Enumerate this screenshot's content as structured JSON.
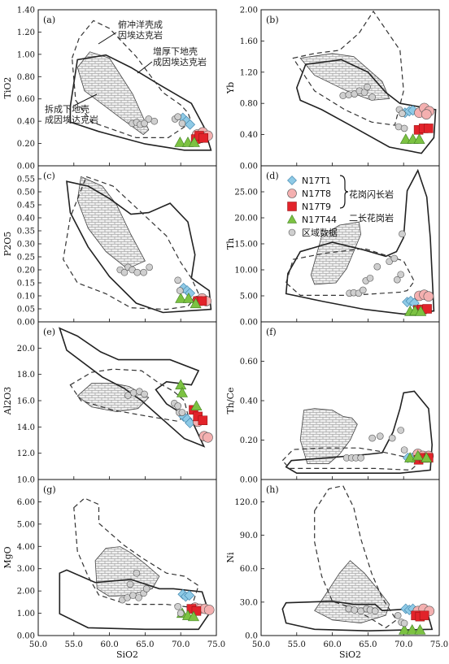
{
  "colors": {
    "N17T1": "#8ecae6",
    "N17T8": "#f4b0b0",
    "N17T9": "#e2232a",
    "N17T44": "#7cc242",
    "regional": "#cfcfcf",
    "hatch_fill": "#f0f0f0"
  },
  "legend": {
    "items": [
      {
        "key": "N17T1",
        "label": "N17T1",
        "marker": "diamond"
      },
      {
        "key": "N17T8",
        "label": "N17T8",
        "marker": "circle"
      },
      {
        "key": "N17T9",
        "label": "N17T9",
        "marker": "square"
      },
      {
        "key": "N17T44",
        "label": "N17T44",
        "marker": "triangle"
      },
      {
        "key": "regional",
        "label": "区域数据",
        "marker": "circle"
      }
    ],
    "group_granodiorite": "花岗闪长岩",
    "group_monzogranite": "二长花岗岩"
  },
  "annotations": {
    "oceanic": [
      "俯冲洋壳成",
      "因埃达克岩"
    ],
    "thickened": [
      "增厚下地壳",
      "成因埃达克岩"
    ],
    "delaminated": [
      "拆成下地壳",
      "成因埃达克岩"
    ]
  },
  "chart_data": [
    {
      "panel": "(a)",
      "type": "scatter",
      "ylabel": "TiO2",
      "xlabel": "",
      "xlim": [
        50,
        75
      ],
      "ylim": [
        0,
        1.4
      ],
      "yticks": [
        "0.00",
        "0.20",
        "0.40",
        "0.60",
        "0.80",
        "1.00",
        "1.20",
        "1.40"
      ],
      "xticks": [],
      "series": [
        {
          "name": "N17T1",
          "points": [
            [
              70.3,
              0.43
            ],
            [
              70.8,
              0.4
            ],
            [
              71.3,
              0.37
            ]
          ]
        },
        {
          "name": "N17T8",
          "points": [
            [
              72.3,
              0.28
            ],
            [
              73.1,
              0.3
            ],
            [
              73.8,
              0.27
            ],
            [
              72.9,
              0.25
            ]
          ]
        },
        {
          "name": "N17T9",
          "points": [
            [
              72.1,
              0.24
            ],
            [
              72.6,
              0.27
            ],
            [
              73.2,
              0.25
            ]
          ]
        },
        {
          "name": "N17T44",
          "points": [
            [
              69.9,
              0.21
            ],
            [
              71.0,
              0.21
            ],
            [
              71.9,
              0.21
            ]
          ]
        },
        {
          "name": "区域数据",
          "points": [
            [
              63.2,
              0.38
            ],
            [
              63.8,
              0.39
            ],
            [
              64.3,
              0.37
            ],
            [
              64.9,
              0.38
            ],
            [
              65.5,
              0.42
            ],
            [
              66.3,
              0.4
            ],
            [
              69.2,
              0.42
            ],
            [
              69.6,
              0.44
            ],
            [
              70.2,
              0.38
            ]
          ]
        }
      ]
    },
    {
      "panel": "(b)",
      "type": "scatter",
      "ylabel": "Yb",
      "xlabel": "",
      "xlim": [
        50,
        75
      ],
      "ylim": [
        0,
        2
      ],
      "yticks": [
        "0.00",
        "0.40",
        "0.80",
        "1.20",
        "1.60",
        "2.00"
      ],
      "xticks": [],
      "series": [
        {
          "name": "N17T1",
          "points": [
            [
              70.2,
              0.68
            ],
            [
              70.8,
              0.7
            ],
            [
              71.3,
              0.71
            ]
          ]
        },
        {
          "name": "N17T8",
          "points": [
            [
              72.2,
              0.68
            ],
            [
              72.9,
              0.74
            ],
            [
              73.6,
              0.7
            ],
            [
              73.2,
              0.66
            ]
          ]
        },
        {
          "name": "N17T9",
          "points": [
            [
              72.1,
              0.46
            ],
            [
              72.8,
              0.48
            ],
            [
              73.5,
              0.48
            ]
          ]
        },
        {
          "name": "N17T44",
          "points": [
            [
              70.3,
              0.34
            ],
            [
              71.3,
              0.34
            ],
            [
              72.2,
              0.34
            ]
          ]
        },
        {
          "name": "区域数据",
          "points": [
            [
              61.5,
              0.9
            ],
            [
              62.3,
              0.91
            ],
            [
              63.1,
              0.92
            ],
            [
              63.8,
              0.96
            ],
            [
              64.5,
              0.94
            ],
            [
              64.9,
              1.01
            ],
            [
              65.6,
              0.88
            ],
            [
              69.4,
              0.72
            ],
            [
              69.8,
              0.67
            ],
            [
              69.3,
              0.5
            ],
            [
              70.1,
              0.48
            ]
          ]
        }
      ]
    },
    {
      "panel": "(c)",
      "type": "scatter",
      "ylabel": "P2O5",
      "xlabel": "",
      "xlim": [
        50,
        75
      ],
      "ylim": [
        0,
        0.6
      ],
      "yticks": [
        "0.00",
        "0.05",
        "0.10",
        "0.15",
        "0.20",
        "0.25",
        "0.30",
        "0.35",
        "0.40",
        "0.45",
        "0.50",
        "0.55"
      ],
      "xticks": [],
      "series": [
        {
          "name": "N17T1",
          "points": [
            [
              70.4,
              0.13
            ],
            [
              70.9,
              0.12
            ],
            [
              71.3,
              0.11
            ]
          ]
        },
        {
          "name": "N17T8",
          "points": [
            [
              72.3,
              0.08
            ],
            [
              73.0,
              0.09
            ],
            [
              73.6,
              0.08
            ]
          ]
        },
        {
          "name": "N17T9",
          "points": [
            [
              72.4,
              0.08
            ],
            [
              73.0,
              0.08
            ]
          ]
        },
        {
          "name": "N17T44",
          "points": [
            [
              70.0,
              0.09
            ],
            [
              71.1,
              0.09
            ],
            [
              72.1,
              0.07
            ]
          ]
        },
        {
          "name": "区域数据",
          "points": [
            [
              61.5,
              0.2
            ],
            [
              62.1,
              0.19
            ],
            [
              62.6,
              0.21
            ],
            [
              63.2,
              0.2
            ],
            [
              63.9,
              0.19
            ],
            [
              64.8,
              0.19
            ],
            [
              65.6,
              0.21
            ],
            [
              69.6,
              0.16
            ],
            [
              69.9,
              0.12
            ]
          ]
        }
      ]
    },
    {
      "panel": "(d)",
      "type": "scatter",
      "ylabel": "Th",
      "xlabel": "",
      "xlim": [
        50,
        75
      ],
      "ylim": [
        0,
        30
      ],
      "yticks": [
        "0.00",
        "5.00",
        "10.00",
        "15.00",
        "20.00",
        "25.00"
      ],
      "xticks": [],
      "series": [
        {
          "name": "N17T1",
          "points": [
            [
              70.5,
              3.8
            ],
            [
              71.0,
              4.0
            ],
            [
              71.5,
              3.6
            ]
          ]
        },
        {
          "name": "N17T8",
          "points": [
            [
              72.2,
              5.0
            ],
            [
              72.9,
              5.2
            ],
            [
              73.5,
              4.9
            ]
          ]
        },
        {
          "name": "N17T9",
          "points": [
            [
              72.0,
              2.3
            ],
            [
              72.6,
              2.4
            ],
            [
              73.3,
              2.5
            ]
          ]
        },
        {
          "name": "N17T44",
          "points": [
            [
              70.9,
              2.0
            ],
            [
              71.6,
              2.1
            ],
            [
              72.4,
              2.0
            ]
          ]
        },
        {
          "name": "区域数据",
          "points": [
            [
              62.4,
              5.5
            ],
            [
              63.0,
              5.6
            ],
            [
              63.7,
              5.5
            ],
            [
              64.3,
              6.1
            ],
            [
              64.7,
              7.9
            ],
            [
              65.3,
              8.4
            ],
            [
              66.3,
              10.6
            ],
            [
              68.0,
              11.6
            ],
            [
              68.7,
              12.2
            ],
            [
              69.1,
              8.1
            ],
            [
              69.6,
              9.1
            ],
            [
              69.8,
              16.9
            ]
          ]
        }
      ]
    },
    {
      "panel": "(e)",
      "type": "scatter",
      "ylabel": "Al2O3",
      "xlabel": "",
      "xlim": [
        50,
        75
      ],
      "ylim": [
        10,
        22
      ],
      "yticks": [
        "10.0",
        "12.0",
        "14.0",
        "16.0",
        "18.0",
        "20.0"
      ],
      "xticks": [],
      "series": [
        {
          "name": "N17T1",
          "points": [
            [
              70.4,
              14.8
            ],
            [
              70.9,
              14.6
            ],
            [
              71.3,
              14.3
            ]
          ]
        },
        {
          "name": "N17T8",
          "points": [
            [
              72.4,
              14.4
            ],
            [
              73.3,
              13.3
            ],
            [
              73.8,
              13.2
            ]
          ]
        },
        {
          "name": "N17T9",
          "points": [
            [
              71.8,
              15.3
            ],
            [
              72.4,
              14.8
            ],
            [
              73.1,
              14.5
            ]
          ]
        },
        {
          "name": "N17T44",
          "points": [
            [
              70.0,
              17.2
            ],
            [
              70.2,
              16.6
            ],
            [
              72.2,
              15.6
            ]
          ]
        },
        {
          "name": "区域数据",
          "points": [
            [
              62.6,
              16.4
            ],
            [
              63.4,
              16.6
            ],
            [
              64.2,
              16.7
            ],
            [
              64.9,
              16.5
            ],
            [
              69.1,
              15.8
            ],
            [
              69.6,
              15.6
            ],
            [
              69.8,
              15.1
            ],
            [
              70.2,
              15.1
            ]
          ]
        }
      ]
    },
    {
      "panel": "(f)",
      "type": "scatter",
      "ylabel": "Th/Ce",
      "xlabel": "",
      "xlim": [
        50,
        75
      ],
      "ylim": [
        0,
        0.8
      ],
      "yticks": [
        "0.00",
        "0.20",
        "0.40",
        "0.60"
      ],
      "xticks": [],
      "series": [
        {
          "name": "N17T1",
          "points": [
            [
              70.6,
              0.11
            ],
            [
              71.2,
              0.11
            ]
          ]
        },
        {
          "name": "N17T8",
          "points": [
            [
              72.0,
              0.13
            ],
            [
              72.7,
              0.12
            ],
            [
              73.5,
              0.12
            ]
          ]
        },
        {
          "name": "N17T9",
          "points": [
            [
              72.1,
              0.1
            ],
            [
              72.8,
              0.11
            ],
            [
              73.5,
              0.11
            ]
          ]
        },
        {
          "name": "N17T44",
          "points": [
            [
              70.9,
              0.11
            ],
            [
              72.0,
              0.12
            ],
            [
              73.2,
              0.11
            ]
          ]
        },
        {
          "name": "区域数据",
          "points": [
            [
              62.0,
              0.11
            ],
            [
              62.7,
              0.11
            ],
            [
              63.3,
              0.11
            ],
            [
              64.0,
              0.11
            ],
            [
              65.6,
              0.21
            ],
            [
              66.7,
              0.22
            ],
            [
              68.4,
              0.21
            ],
            [
              69.6,
              0.25
            ],
            [
              70.1,
              0.15
            ]
          ]
        }
      ]
    },
    {
      "panel": "(g)",
      "type": "scatter",
      "ylabel": "MgO",
      "xlabel": "SiO2",
      "xlim": [
        50,
        75
      ],
      "ylim": [
        0,
        7
      ],
      "yticks": [
        "0.00",
        "1.00",
        "2.00",
        "3.00",
        "4.00",
        "5.00",
        "6.00"
      ],
      "xticks": [
        "50.0",
        "55.0",
        "60.0",
        "65.0",
        "70.0",
        "75.0"
      ],
      "series": [
        {
          "name": "N17T1",
          "points": [
            [
              70.3,
              1.85
            ],
            [
              70.7,
              1.75
            ],
            [
              71.2,
              1.8
            ]
          ]
        },
        {
          "name": "N17T8",
          "points": [
            [
              72.0,
              1.25
            ],
            [
              72.7,
              1.2
            ],
            [
              73.4,
              1.2
            ],
            [
              74.0,
              1.15
            ]
          ]
        },
        {
          "name": "N17T9",
          "points": [
            [
              71.5,
              1.2
            ],
            [
              72.2,
              1.1
            ]
          ]
        },
        {
          "name": "N17T44",
          "points": [
            [
              70.2,
              1.0
            ],
            [
              71.0,
              0.9
            ],
            [
              71.8,
              0.85
            ]
          ]
        },
        {
          "name": "区域数据",
          "points": [
            [
              61.8,
              1.6
            ],
            [
              62.5,
              1.7
            ],
            [
              63.3,
              1.8
            ],
            [
              64.1,
              1.7
            ],
            [
              64.8,
              1.9
            ],
            [
              65.2,
              2.1
            ],
            [
              62.9,
              2.3
            ],
            [
              63.8,
              2.8
            ],
            [
              69.6,
              1.3
            ],
            [
              70.0,
              1.0
            ]
          ]
        }
      ]
    },
    {
      "panel": "(h)",
      "type": "scatter",
      "ylabel": "Ni",
      "xlabel": "SiO2",
      "xlim": [
        50,
        75
      ],
      "ylim": [
        0,
        140
      ],
      "yticks": [
        "0.0",
        "30.0",
        "60.0",
        "90.0",
        "120.0"
      ],
      "xticks": [
        "50.0",
        "55.0",
        "60.0",
        "65.0",
        "70.0",
        "75.0"
      ],
      "series": [
        {
          "name": "N17T1",
          "points": [
            [
              70.3,
              24
            ],
            [
              70.8,
              23
            ],
            [
              71.3,
              24
            ]
          ]
        },
        {
          "name": "N17T8",
          "points": [
            [
              72.0,
              22
            ],
            [
              72.8,
              24
            ],
            [
              73.6,
              22
            ]
          ]
        },
        {
          "name": "N17T9",
          "points": [
            [
              71.7,
              18
            ],
            [
              72.3,
              17
            ],
            [
              72.9,
              18
            ]
          ]
        },
        {
          "name": "N17T44",
          "points": [
            [
              70.1,
              5
            ],
            [
              71.2,
              5
            ],
            [
              72.3,
              5
            ]
          ]
        },
        {
          "name": "区域数据",
          "points": [
            [
              62.3,
              24
            ],
            [
              63.1,
              23
            ],
            [
              64.0,
              22
            ],
            [
              64.8,
              24
            ],
            [
              65.3,
              23
            ],
            [
              66.0,
              22
            ],
            [
              69.2,
              18
            ],
            [
              69.7,
              12
            ],
            [
              70.1,
              11
            ]
          ]
        }
      ]
    }
  ]
}
